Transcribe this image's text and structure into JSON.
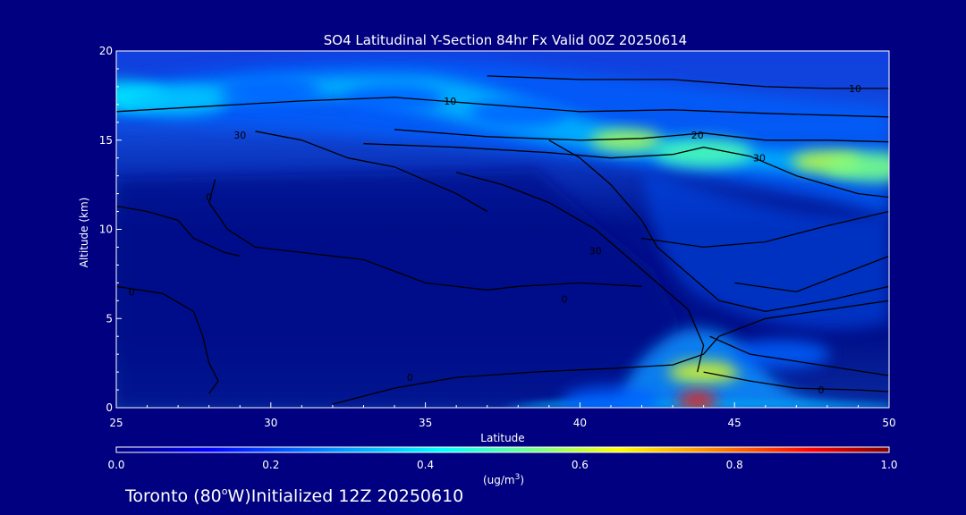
{
  "chart_data": {
    "type": "heatmap",
    "title": "SO4 Latitudinal Y-Section 84hr  Fx Valid 00Z 20250614",
    "xlabel": "Latitude",
    "ylabel": "Altitude (km)",
    "xlim": [
      25,
      50
    ],
    "ylim": [
      0,
      20
    ],
    "xticks": [
      "25",
      "30",
      "35",
      "40",
      "45",
      "50"
    ],
    "yticks": [
      "0",
      "5",
      "10",
      "15",
      "20"
    ],
    "colorbar": {
      "range": [
        0.0,
        1.0
      ],
      "ticks": [
        "0.0",
        "0.2",
        "0.4",
        "0.6",
        "0.8",
        "1.0"
      ],
      "units": "(ug/m",
      "units_sup": "3",
      "units_close": ")",
      "colors": [
        "#000080",
        "#0000ff",
        "#00a0ff",
        "#00ffff",
        "#80ff80",
        "#ffff00",
        "#ff8000",
        "#ff0000",
        "#800000"
      ]
    },
    "features": [
      {
        "lat": 25.0,
        "alt": 17.5,
        "value": 0.35
      },
      {
        "lat": 27.0,
        "alt": 17.2,
        "value": 0.3
      },
      {
        "lat": 30.0,
        "alt": 17.8,
        "value": 0.2
      },
      {
        "lat": 34.0,
        "alt": 17.3,
        "value": 0.2
      },
      {
        "lat": 38.0,
        "alt": 16.5,
        "value": 0.2
      },
      {
        "lat": 41.5,
        "alt": 15.0,
        "value": 0.55
      },
      {
        "lat": 44.0,
        "alt": 14.3,
        "value": 0.45
      },
      {
        "lat": 48.0,
        "alt": 13.8,
        "value": 0.58
      },
      {
        "lat": 49.5,
        "alt": 13.5,
        "value": 0.5
      },
      {
        "lat": 44.0,
        "alt": 2.0,
        "value": 0.6
      },
      {
        "lat": 43.8,
        "alt": 0.4,
        "value": 0.85
      },
      {
        "lat": 41.0,
        "alt": 0.4,
        "value": 0.2
      },
      {
        "lat": 46.5,
        "alt": 3.0,
        "value": 0.2
      }
    ],
    "contours": [
      {
        "label": "10",
        "label_lat": 48.9,
        "label_alt": 17.9,
        "points": [
          [
            37,
            18.6
          ],
          [
            40,
            18.4
          ],
          [
            43,
            18.4
          ],
          [
            46,
            18.0
          ],
          [
            48,
            17.9
          ],
          [
            50,
            17.9
          ]
        ]
      },
      {
        "label": "10",
        "label_lat": 35.8,
        "label_alt": 17.2,
        "points": [
          [
            25,
            16.6
          ],
          [
            28,
            16.9
          ],
          [
            31,
            17.2
          ],
          [
            34,
            17.4
          ],
          [
            37,
            17.0
          ],
          [
            40,
            16.6
          ],
          [
            43,
            16.7
          ],
          [
            46,
            16.5
          ],
          [
            50,
            16.3
          ]
        ]
      },
      {
        "label": "20",
        "label_lat": 43.8,
        "label_alt": 15.3,
        "points": [
          [
            34,
            15.6
          ],
          [
            37,
            15.2
          ],
          [
            40,
            15.0
          ],
          [
            42,
            15.1
          ],
          [
            44,
            15.4
          ],
          [
            46,
            15.0
          ],
          [
            48,
            15.0
          ],
          [
            50,
            14.9
          ]
        ]
      },
      {
        "label": "30",
        "label_lat": 45.8,
        "label_alt": 14.0,
        "points": [
          [
            33,
            14.8
          ],
          [
            36,
            14.6
          ],
          [
            39,
            14.3
          ],
          [
            41,
            14.0
          ],
          [
            43,
            14.2
          ],
          [
            44,
            14.6
          ],
          [
            45.5,
            14.1
          ],
          [
            47,
            13.0
          ],
          [
            49,
            12.0
          ],
          [
            50,
            11.8
          ]
        ]
      },
      {
        "label": "30",
        "label_lat": 29.0,
        "label_alt": 15.3,
        "points": [
          [
            29.5,
            15.5
          ],
          [
            31,
            15.0
          ],
          [
            32.5,
            14.0
          ],
          [
            34,
            13.5
          ],
          [
            36,
            12.0
          ],
          [
            37,
            11.0
          ]
        ]
      },
      {
        "label": "0",
        "label_lat": 28.0,
        "label_alt": 11.8,
        "points": [
          [
            28.2,
            12.8
          ],
          [
            28.0,
            11.5
          ],
          [
            28.6,
            10.0
          ],
          [
            29.5,
            9.0
          ],
          [
            31,
            8.7
          ],
          [
            33,
            8.3
          ],
          [
            35,
            7.0
          ],
          [
            37,
            6.6
          ],
          [
            38,
            6.8
          ],
          [
            40,
            7.0
          ],
          [
            42,
            6.8
          ]
        ]
      },
      {
        "label": "0",
        "label_lat": 25.5,
        "label_alt": 6.5,
        "points": [
          [
            25,
            6.8
          ],
          [
            26.5,
            6.4
          ],
          [
            27.5,
            5.4
          ],
          [
            27.8,
            4.0
          ],
          [
            28.0,
            2.5
          ],
          [
            28.3,
            1.5
          ],
          [
            28.0,
            0.8
          ]
        ]
      },
      {
        "label": "0",
        "label_lat": 34.5,
        "label_alt": 1.7,
        "points": [
          [
            32,
            0.2
          ],
          [
            34,
            1.1
          ],
          [
            36,
            1.7
          ],
          [
            38.5,
            2.0
          ],
          [
            41,
            2.2
          ],
          [
            43,
            2.4
          ],
          [
            44,
            3.0
          ],
          [
            44.5,
            4.0
          ],
          [
            46,
            5.0
          ],
          [
            48,
            5.5
          ],
          [
            50,
            6.0
          ]
        ]
      },
      {
        "label": "30",
        "label_lat": 40.5,
        "label_alt": 8.8,
        "points": [
          [
            39,
            15.0
          ],
          [
            40,
            14.0
          ],
          [
            41,
            12.5
          ],
          [
            42,
            10.5
          ],
          [
            42.5,
            9.0
          ],
          [
            43.5,
            7.5
          ],
          [
            44.5,
            6.0
          ],
          [
            46,
            5.4
          ],
          [
            48,
            6.0
          ],
          [
            50,
            6.8
          ]
        ]
      },
      {
        "label": "0",
        "label_lat": 39.5,
        "label_alt": 6.1,
        "points": [
          [
            36,
            13.2
          ],
          [
            37.5,
            12.5
          ],
          [
            39,
            11.5
          ],
          [
            40.5,
            10.0
          ],
          [
            41.5,
            8.5
          ],
          [
            42.5,
            7.0
          ],
          [
            43.5,
            5.5
          ],
          [
            44,
            3.5
          ],
          [
            43.8,
            2.0
          ]
        ]
      },
      {
        "label": "0",
        "label_lat": 47.8,
        "label_alt": 1.0,
        "points": [
          [
            44,
            2.0
          ],
          [
            45.5,
            1.5
          ],
          [
            47,
            1.1
          ],
          [
            49,
            1.0
          ],
          [
            50,
            0.9
          ]
        ]
      },
      {
        "label": "",
        "label_lat": 0,
        "label_alt": 0,
        "points": [
          [
            44.2,
            4.0
          ],
          [
            45.5,
            3.0
          ],
          [
            47,
            2.6
          ],
          [
            48.5,
            2.2
          ],
          [
            50,
            1.8
          ]
        ]
      },
      {
        "label": "",
        "label_lat": 0,
        "label_alt": 0,
        "points": [
          [
            45,
            7.0
          ],
          [
            47,
            6.5
          ],
          [
            48.5,
            7.5
          ],
          [
            50,
            8.5
          ]
        ]
      },
      {
        "label": "",
        "label_lat": 0,
        "label_alt": 0,
        "points": [
          [
            42,
            9.5
          ],
          [
            44,
            9.0
          ],
          [
            46,
            9.3
          ],
          [
            48,
            10.2
          ],
          [
            50,
            11.0
          ]
        ]
      },
      {
        "label": "",
        "label_lat": 0,
        "label_alt": 0,
        "points": [
          [
            25,
            11.3
          ],
          [
            26,
            11.0
          ],
          [
            27,
            10.5
          ],
          [
            27.5,
            9.5
          ],
          [
            28.5,
            8.7
          ],
          [
            29,
            8.5
          ]
        ]
      }
    ]
  },
  "footer": {
    "location_text": "Toronto (80",
    "degree_symbol": "o",
    "location_rest": "W)Initialized 12Z 20250610"
  }
}
